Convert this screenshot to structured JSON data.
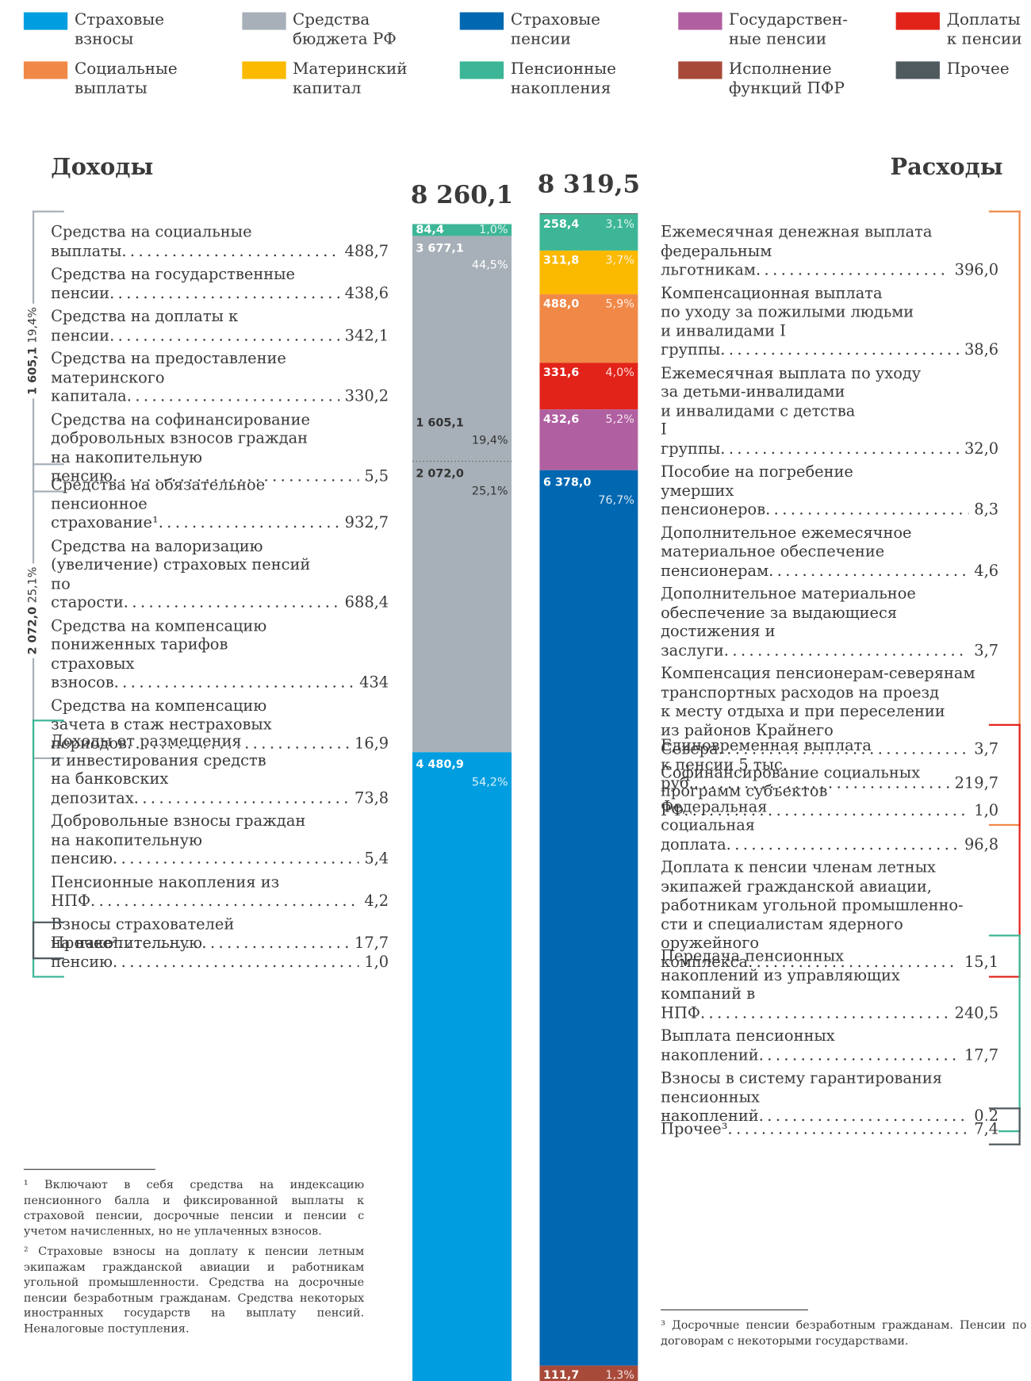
{
  "legend": [
    {
      "label": "Страховые\nвзносы",
      "color": "#009ee0"
    },
    {
      "label": "Средства\nбюджета РФ",
      "color": "#a7b0b8"
    },
    {
      "label": "Страховые\nпенсии",
      "color": "#0067b1"
    },
    {
      "label": "Государствен-\nные пенсии",
      "color": "#b05fa0"
    },
    {
      "label": "Доплаты\nк пенсии",
      "color": "#e2231a"
    },
    {
      "label": "Социальные\nвыплаты",
      "color": "#f08848"
    },
    {
      "label": "Материнский\nкапитал",
      "color": "#fbb900"
    },
    {
      "label": "Пенсионные\nнакопления",
      "color": "#3cb696"
    },
    {
      "label": "Исполнение\nфункций ПФР",
      "color": "#a84a3a"
    },
    {
      "label": "Прочее",
      "color": "#4f5a5f"
    }
  ],
  "income": {
    "title": "Доходы",
    "groups": [
      {
        "color": "#a7b0b8",
        "items": [
          {
            "label": "Средства на социальные\nвыплаты",
            "value": "488,7"
          },
          {
            "label": "Средства на государственные\nпенсии",
            "value": "438,6"
          },
          {
            "label": "Средства на доплаты к пенсии",
            "value": "342,1"
          },
          {
            "label": "Средства на предоставление\nматеринского капитала",
            "value": "330,2"
          },
          {
            "label": "Средства на софинансирование\nдобровольных взносов граждан\nна накопительную пенсию",
            "value": "5,5"
          }
        ]
      },
      {
        "color": "#a7b0b8",
        "items": [
          {
            "label": "Средства на обязательное\nпенсионное страхование¹",
            "value": "932,7"
          },
          {
            "label": "Средства на валоризацию\n(увеличение) страховых пенсий\nпо старости",
            "value": "688,4"
          },
          {
            "label": "Средства на компенсацию\nпониженных тарифов\nстраховых взносов",
            "value": "434"
          },
          {
            "label": "Средства на компенсацию\nзачета в стаж нестраховых\nпериодов",
            "value": "16,9"
          }
        ]
      },
      {
        "color": "#3cb696",
        "items": [
          {
            "label": "Доходы от размещения\nи инвестирования средств\nна банковских депозитах",
            "value": "73,8"
          },
          {
            "label": "Добровольные взносы граждан\nна накопительную пенсию",
            "value": "5,4"
          },
          {
            "label": "Пенсионные накопления из НПФ",
            "value": "4,2"
          },
          {
            "label": "Взносы страхователей\nна накопительную пенсию",
            "value": "1,0"
          }
        ]
      },
      {
        "color": "#4f5a5f",
        "items": [
          {
            "label": "Прочее²",
            "value": "17,7"
          }
        ]
      }
    ]
  },
  "expenses": {
    "title": "Расходы",
    "groups": [
      {
        "color": "#f08848",
        "items": [
          {
            "label": "Ежемесячная денежная выплата\nфедеральным льготникам",
            "value": "396,0"
          },
          {
            "label": "Компенсационная выплата\nпо уходу за пожилыми людьми\nи инвалидами I группы",
            "value": "38,6"
          },
          {
            "label": "Ежемесячная выплата по уходу\nза детьми-инвалидами\nи инвалидами с детства\nI группы",
            "value": "32,0"
          },
          {
            "label": "Пособие на погребение\nумерших пенсионеров",
            "value": "8,3"
          },
          {
            "label": "Дополнительное ежемесячное\nматериальное обеспечение\nпенсионерам",
            "value": "4,6"
          },
          {
            "label": "Дополнительное материальное\nобеспечение за выдающиеся\nдостижения и заслуги",
            "value": "3,7"
          },
          {
            "label": "Компенсация пенсионерам-северянам\nтранспортных расходов на проезд\nк месту отдыха и при переселении\nиз районов Крайнего Севера",
            "value": "3,7"
          },
          {
            "label": "Софинансирование социальных\nпрограмм субъектов РФ",
            "value": "1,0"
          }
        ]
      },
      {
        "color": "#e2231a",
        "items": [
          {
            "label": "Единовременная выплата\nк пенсии 5 тыс. руб.",
            "value": "219,7"
          },
          {
            "label": "Федеральная\nсоциальная доплата",
            "value": "96,8"
          },
          {
            "label": "Доплата к пенсии членам летных\nэкипажей гражданской авиации,\nработникам угольной промышленно-\nсти и специалистам ядерного\nоружейного комплекса",
            "value": "15,1"
          }
        ]
      },
      {
        "color": "#3cb696",
        "items": [
          {
            "label": "Передача пенсионных\nнакоплений из управляющих\nкомпаний в НПФ",
            "value": "240,5"
          },
          {
            "label": "Выплата пенсионных\nнакоплений",
            "value": "17,7"
          },
          {
            "label": "Взносы в систему гарантирования\nпенсионных накоплений",
            "value": "0,2"
          }
        ]
      },
      {
        "color": "#4f5a5f",
        "items": [
          {
            "label": "Прочее³",
            "value": "7,4"
          }
        ]
      }
    ]
  },
  "footnotes_income": [
    "¹ Включают в себя средства на индексацию пенсионного балла и фиксированной выплаты к страховой пенсии, досрочные пенсии и пенсии с учетом начисленных, но не уплаченных взносов.",
    "² Страховые взносы на доплату к пенсии летным экипажам гражданской авиации и работникам угольной промышленности. Средства на досрочные пенсии безработным гражданам. Средства некоторых иностранных государств на выплату пенсий. Неналоговые поступления."
  ],
  "footnotes_expenses": [
    "³ Досрочные пенсии безработным гражданам. Пенсии по договорам с некоторыми государствами."
  ],
  "chart_data": {
    "type": "stacked_bar",
    "bars": [
      {
        "total": 8260.1,
        "total_label": "8 260,1",
        "group": {
          "value": 3677.1,
          "value_label": "3 677,1",
          "share": 44.5,
          "share_label": "44,5%",
          "color": "#a7b0b8"
        },
        "segments": [
          {
            "value": 84.4,
            "value_label": "84,4",
            "share": 1.0,
            "share_label": "1,0%",
            "color": "#3cb696"
          },
          {
            "value": 1605.1,
            "value_label": "1 605,1",
            "share": 19.4,
            "share_label": "19,4%",
            "color": "#a7b0b8"
          },
          {
            "value": 2072.0,
            "value_label": "2 072,0",
            "share": 25.1,
            "share_label": "25,1%",
            "color": "#a7b0b8"
          },
          {
            "value": 4480.9,
            "value_label": "4 480,9",
            "share": 54.2,
            "share_label": "54,2%",
            "color": "#009ee0"
          }
        ]
      },
      {
        "total": 8319.5,
        "total_label": "8 319,5",
        "segments": [
          {
            "value": 7.4,
            "color": "#4f5a5f"
          },
          {
            "value": 258.4,
            "value_label": "258,4",
            "share": 3.1,
            "share_label": "3,1%",
            "color": "#3cb696"
          },
          {
            "value": 311.8,
            "value_label": "311,8",
            "share": 3.7,
            "share_label": "3,7%",
            "color": "#fbb900"
          },
          {
            "value": 488.0,
            "value_label": "488,0",
            "share": 5.9,
            "share_label": "5,9%",
            "color": "#f08848"
          },
          {
            "value": 331.6,
            "value_label": "331,6",
            "share": 4.0,
            "share_label": "4,0%",
            "color": "#e2231a"
          },
          {
            "value": 432.6,
            "value_label": "432,6",
            "share": 5.2,
            "share_label": "5,2%",
            "color": "#b05fa0"
          },
          {
            "value": 6378.0,
            "value_label": "6 378,0",
            "share": 76.7,
            "share_label": "76,7%",
            "color": "#0067b1"
          },
          {
            "value": 111.7,
            "value_label": "111,7",
            "share": 1.3,
            "share_label": "1,3%",
            "color": "#a84a3a"
          }
        ]
      }
    ]
  }
}
